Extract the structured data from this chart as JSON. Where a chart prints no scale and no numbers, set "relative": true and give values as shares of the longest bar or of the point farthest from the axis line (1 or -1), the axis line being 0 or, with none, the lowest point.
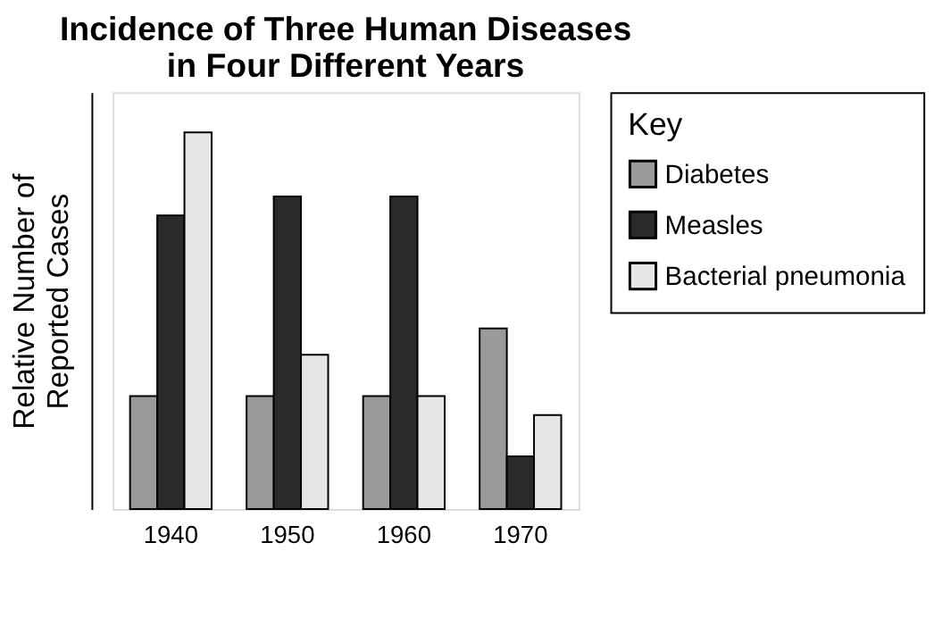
{
  "chart_data": {
    "type": "bar",
    "title": "Incidence of Three Human Diseases\nin Four Different Years",
    "ylabel": "Relative Number of\nReported Cases",
    "legend_title": "Key",
    "relative": true,
    "legend": "right",
    "grid": false,
    "categories": [
      "1940",
      "1950",
      "1960",
      "1970"
    ],
    "series": [
      {
        "name": "Diabetes",
        "color": "#9a9a9a",
        "values": [
          0.3,
          0.3,
          0.3,
          0.48
        ]
      },
      {
        "name": "Measles",
        "color": "#2a2a2a",
        "values": [
          0.78,
          0.83,
          0.83,
          0.14
        ]
      },
      {
        "name": "Bacterial\npneumonia",
        "color": "#e6e6e6",
        "values": [
          1,
          0.41,
          0.3,
          0.25
        ]
      }
    ]
  }
}
